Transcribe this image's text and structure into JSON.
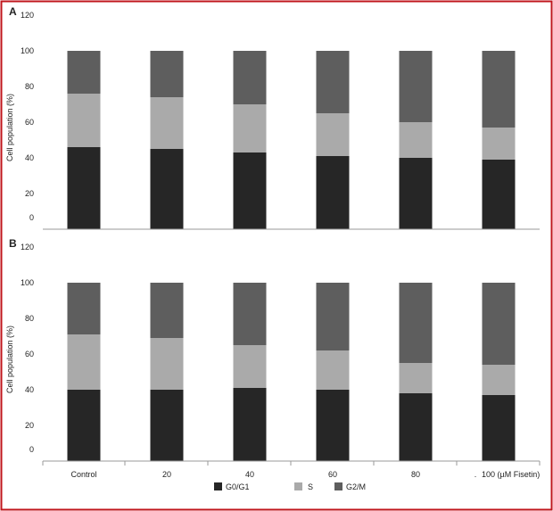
{
  "colors": {
    "frame": "#c0161c",
    "g0g1": "#262626",
    "s": "#aaaaaa",
    "g2m": "#5e5e5e",
    "axis": "#9a9a9a",
    "text": "#222222"
  },
  "chart_data": [
    {
      "type": "bar",
      "stacked": true,
      "panel_label": "A",
      "ylabel": "Cell population (%)",
      "ylim": [
        0,
        120
      ],
      "yticks": [
        0,
        20,
        40,
        60,
        80,
        100,
        120
      ],
      "grid": false,
      "categories": [
        "Control",
        "20",
        "40",
        "60",
        "80",
        "100"
      ],
      "series": [
        {
          "name": "G0/G1",
          "values": [
            46,
            45,
            43,
            41,
            40,
            39
          ]
        },
        {
          "name": "S",
          "values": [
            30,
            29,
            27,
            24,
            20,
            18
          ]
        },
        {
          "name": "G2/M",
          "values": [
            24,
            26,
            30,
            35,
            40,
            43
          ]
        }
      ]
    },
    {
      "type": "bar",
      "stacked": true,
      "panel_label": "B",
      "ylabel": "Cell population (%)",
      "ylim": [
        0,
        120
      ],
      "yticks": [
        0,
        20,
        40,
        60,
        80,
        100,
        120
      ],
      "grid": false,
      "categories": [
        "Control",
        "20",
        "40",
        "60",
        "80",
        "100"
      ],
      "series": [
        {
          "name": "G0/G1",
          "values": [
            40,
            40,
            41,
            40,
            38,
            37
          ]
        },
        {
          "name": "S",
          "values": [
            31,
            29,
            24,
            22,
            17,
            17
          ]
        },
        {
          "name": "G2/M",
          "values": [
            29,
            31,
            35,
            38,
            45,
            46
          ]
        }
      ]
    }
  ],
  "x_axis": {
    "tick_labels": [
      "Control",
      "20",
      "40",
      "60",
      "80",
      "100 (µM Fisetin)"
    ],
    "leading_mark": "."
  },
  "legend": {
    "placement": "bottom-center",
    "items": [
      {
        "label": "G0/G1",
        "color_key": "g0g1"
      },
      {
        "label": "S",
        "color_key": "s"
      },
      {
        "label": "G2/M",
        "color_key": "g2m"
      }
    ]
  }
}
